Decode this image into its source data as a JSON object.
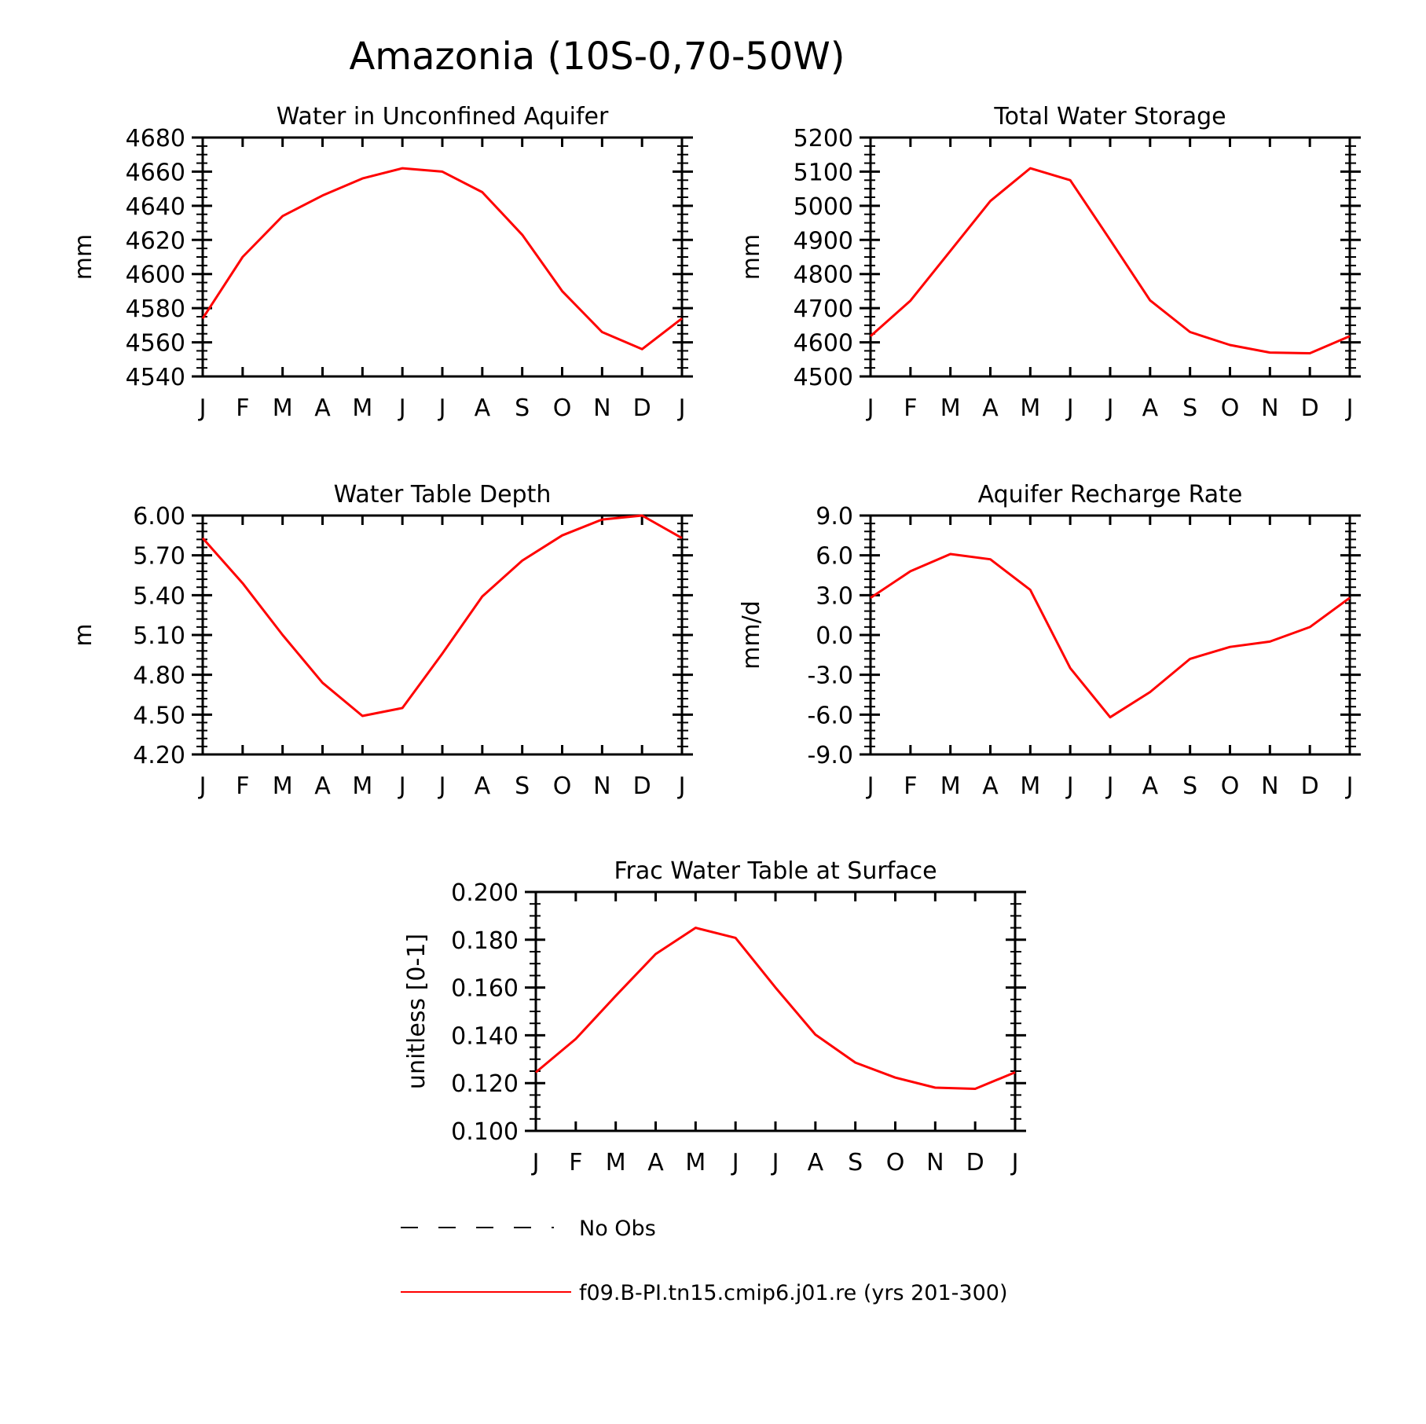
{
  "figure": {
    "title": "Amazonia (10S-0,70-50W)"
  },
  "legend": {
    "entries": [
      {
        "label": "No Obs",
        "style": "dashed",
        "color": "#000000"
      },
      {
        "label": "f09.B-PI.tn15.cmip6.j01.re (yrs 201-300)",
        "style": "solid",
        "color": "#ff0000"
      }
    ]
  },
  "chart_data": [
    {
      "type": "line",
      "title": "Water in Unconfined Aquifer",
      "ylabel": "mm",
      "categories": [
        "J",
        "F",
        "M",
        "A",
        "M",
        "J",
        "J",
        "A",
        "S",
        "O",
        "N",
        "D",
        "J"
      ],
      "ylim": [
        4540,
        4680
      ],
      "yticks": [
        "4540",
        "4560",
        "4580",
        "4600",
        "4620",
        "4640",
        "4660",
        "4680"
      ],
      "series": [
        {
          "color": "#ff0000",
          "values": [
            4574,
            4610,
            4634,
            4646,
            4656,
            4662,
            4660,
            4648,
            4623,
            4590,
            4566,
            4556,
            4574
          ]
        }
      ]
    },
    {
      "type": "line",
      "title": "Total Water Storage",
      "ylabel": "mm",
      "categories": [
        "J",
        "F",
        "M",
        "A",
        "M",
        "J",
        "J",
        "A",
        "S",
        "O",
        "N",
        "D",
        "J"
      ],
      "ylim": [
        4500,
        5200
      ],
      "yticks": [
        "4500",
        "4600",
        "4700",
        "4800",
        "4900",
        "5000",
        "5100",
        "5200"
      ],
      "series": [
        {
          "color": "#ff0000",
          "values": [
            4618,
            4722,
            4868,
            5014,
            5110,
            5075,
            4900,
            4723,
            4630,
            4592,
            4570,
            4568,
            4618
          ]
        }
      ]
    },
    {
      "type": "line",
      "title": "Water Table Depth",
      "ylabel": "m",
      "categories": [
        "J",
        "F",
        "M",
        "A",
        "M",
        "J",
        "J",
        "A",
        "S",
        "O",
        "N",
        "D",
        "J"
      ],
      "ylim": [
        4.2,
        6.0
      ],
      "yticks": [
        "4.20",
        "4.50",
        "4.80",
        "5.10",
        "5.40",
        "5.70",
        "6.00"
      ],
      "series": [
        {
          "color": "#ff0000",
          "values": [
            5.83,
            5.49,
            5.1,
            4.74,
            4.49,
            4.55,
            4.96,
            5.39,
            5.66,
            5.85,
            5.97,
            6.0,
            5.83
          ]
        }
      ]
    },
    {
      "type": "line",
      "title": "Aquifer Recharge Rate",
      "ylabel": "mm/d",
      "categories": [
        "J",
        "F",
        "M",
        "A",
        "M",
        "J",
        "J",
        "A",
        "S",
        "O",
        "N",
        "D",
        "J"
      ],
      "ylim": [
        -9.0,
        9.0
      ],
      "yticks": [
        "-9.0",
        "-6.0",
        "-3.0",
        "0.0",
        "3.0",
        "6.0",
        "9.0"
      ],
      "series": [
        {
          "color": "#ff0000",
          "values": [
            2.8,
            4.8,
            6.1,
            5.7,
            3.4,
            -2.5,
            -6.2,
            -4.3,
            -1.8,
            -0.9,
            -0.5,
            0.6,
            2.8
          ]
        }
      ]
    },
    {
      "type": "line",
      "title": "Frac Water Table at Surface",
      "ylabel": "unitless [0-1]",
      "categories": [
        "J",
        "F",
        "M",
        "A",
        "M",
        "J",
        "J",
        "A",
        "S",
        "O",
        "N",
        "D",
        "J"
      ],
      "ylim": [
        0.1,
        0.2
      ],
      "yticks": [
        "0.100",
        "0.120",
        "0.140",
        "0.160",
        "0.180",
        "0.200"
      ],
      "series": [
        {
          "color": "#ff0000",
          "values": [
            0.1245,
            0.1385,
            0.1565,
            0.174,
            0.185,
            0.1808,
            0.16,
            0.1403,
            0.1286,
            0.1223,
            0.1181,
            0.1176,
            0.1245
          ]
        }
      ]
    }
  ]
}
